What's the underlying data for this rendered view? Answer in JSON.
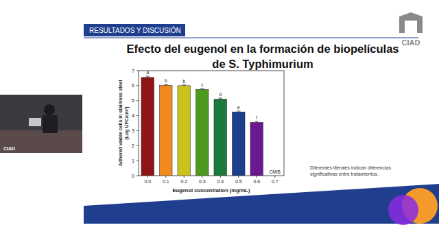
{
  "slide": {
    "header": "RESULTADOS Y DISCUSIÓN",
    "logo": "CIAD",
    "webcam_label": "CIAD",
    "note": "Diferentes literales indican diferencias significativas entre tratamientos."
  },
  "chart_data": {
    "type": "bar",
    "title": "Efecto del eugenol en la formación de biopelículas de S. Typhimurium",
    "x_label": "Eugenol concentration (mg/mL)",
    "y_label": "Adhered viable cells in stainless steel (Log UFC/cm²)",
    "categories": [
      "0.0",
      "0.1",
      "0.2",
      "0.3",
      "0.4",
      "0.5",
      "0.6",
      "0.7"
    ],
    "values": [
      6.55,
      6.02,
      6.0,
      5.75,
      5.1,
      4.25,
      3.55,
      null
    ],
    "errors": [
      0.08,
      0.05,
      0.05,
      0.06,
      0.07,
      0.06,
      0.08,
      null
    ],
    "significance_letters": [
      "a",
      "b",
      "b",
      "c",
      "d",
      "e",
      "f",
      "CMIB"
    ],
    "colors": [
      "#8e1616",
      "#f08a1c",
      "#c9c31c",
      "#4f9a1e",
      "#1c7a3c",
      "#1c3f8e",
      "#6a1a8e",
      "#7a1a6a"
    ],
    "ylim": [
      0,
      7
    ],
    "yticks": [
      0,
      1,
      2,
      3,
      4,
      5,
      6,
      7
    ],
    "grid": false
  }
}
